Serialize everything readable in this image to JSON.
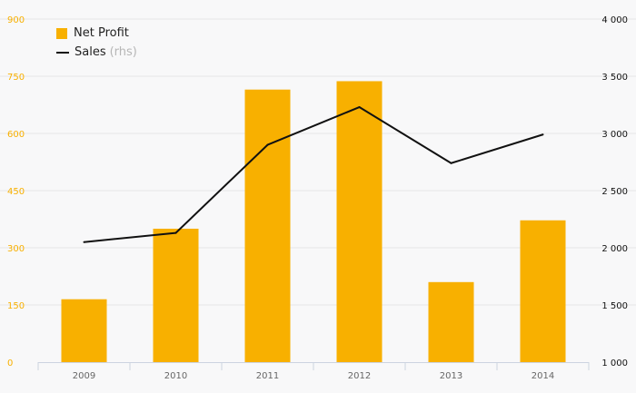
{
  "chart_data": {
    "type": "bar",
    "categories": [
      "2009",
      "2010",
      "2011",
      "2012",
      "2013",
      "2014"
    ],
    "series": [
      {
        "name": "Net Profit",
        "type": "bar",
        "axis": "left",
        "color": "#f8b000",
        "values": [
          165,
          350,
          715,
          737,
          210,
          372
        ]
      },
      {
        "name": "Sales",
        "type": "line",
        "axis": "right",
        "color": "#111111",
        "values": [
          2050,
          2130,
          2900,
          3230,
          2740,
          2990
        ]
      }
    ],
    "y_left": {
      "ticks": [
        0,
        150,
        300,
        450,
        600,
        750,
        900
      ],
      "tick_labels": [
        "0",
        "150",
        "300",
        "450",
        "600",
        "750",
        "900"
      ],
      "range": [
        0,
        900
      ],
      "color": "#f8b000"
    },
    "y_right": {
      "ticks": [
        1000,
        1500,
        2000,
        2500,
        3000,
        3500,
        4000
      ],
      "tick_labels": [
        "1 000",
        "1 500",
        "2 000",
        "2 500",
        "3 000",
        "3 500",
        "4 000"
      ],
      "range": [
        1000,
        4000
      ],
      "color": "#111111"
    },
    "grid": true,
    "legend": {
      "position": "top-left",
      "items": [
        {
          "label": "Net Profit"
        },
        {
          "label": "Sales",
          "note": "(rhs)"
        }
      ]
    }
  }
}
